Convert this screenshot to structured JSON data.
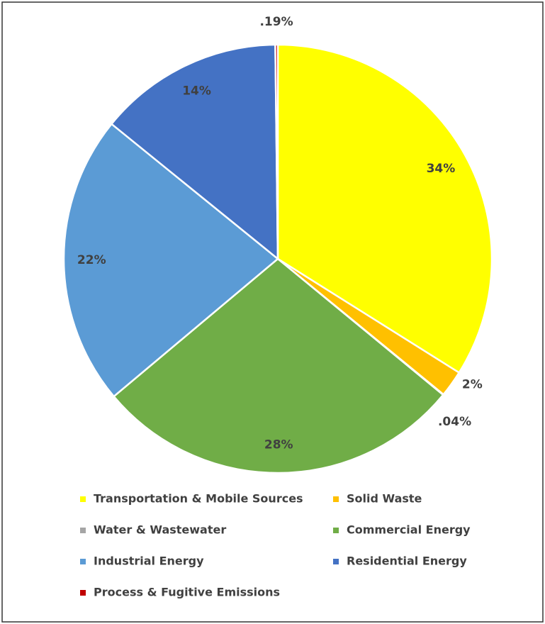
{
  "chart_data": {
    "type": "pie",
    "categories": [
      "Transportation & Mobile Sources",
      "Solid Waste",
      "Water & Wastewater",
      "Commercial Energy",
      "Industrial Energy",
      "Residential Energy",
      "Process & Fugitive Emissions"
    ],
    "values": [
      34,
      2,
      0.04,
      28,
      22,
      14,
      0.19
    ],
    "value_labels": [
      "34%",
      "2%",
      ".04%",
      "28%",
      "22%",
      "14%",
      ".19%"
    ],
    "colors": [
      "#ffff00",
      "#ffc000",
      "#a5a5a5",
      "#70ad47",
      "#5b9bd5",
      "#4472c4",
      "#c00000"
    ],
    "legend": "bottom"
  }
}
